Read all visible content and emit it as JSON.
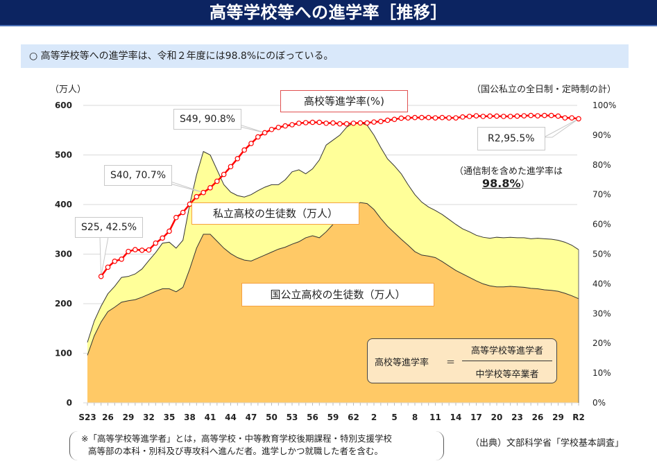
{
  "title": "高等学校等への進学率［推移］",
  "summary": "○  高等学校等への進学率は、令和２年度には98.8%にのぼっている。",
  "units": {
    "left": "（万人）",
    "right_note": "（国公私立の全日制・定時制の計）"
  },
  "series_labels": {
    "rate": "高校等進学率(%)",
    "private": "私立高校の生徒数（万人）",
    "public": "国公立高校の生徒数（万人）"
  },
  "callouts": {
    "s25": "S25, 42.5%",
    "s40": "S40, 70.7%",
    "s49": "S49, 90.8%",
    "r2": "R2,95.5%"
  },
  "note_correspondence": {
    "line1": "（通信制を含めた進学率は",
    "value": "98.8%",
    "close": "）"
  },
  "formula": {
    "lhs": "高校等進学率",
    "equals": "＝",
    "numerator": "高等学校等進学者",
    "denominator": "中学校等卒業者"
  },
  "footnote": {
    "line1": "※「高等学校等進学者」とは，高等学校・中等教育学校後期課程・特別支援学校",
    "line2": "高等部の本科・別科及び専攻科へ進んだ者。進学しかつ就職した者を含む。"
  },
  "source": "（出典）文部科学省「学校基本調査」",
  "colors": {
    "title_bg": "#0c2461",
    "summary_bg": "#d9e8fa",
    "public_fill": "#ffc966",
    "private_fill": "#ffff99",
    "rate_line": "#ff0000",
    "rate_box_border": "#e05050",
    "series_box_border": "#f5a040"
  },
  "chart_data": {
    "type": "area",
    "title": "高等学校等への進学率［推移］",
    "xlabel": "",
    "ylabel": "（万人）",
    "y2label": "%",
    "ylim": [
      0,
      600
    ],
    "y2lim": [
      0,
      100
    ],
    "yticks": [
      0,
      100,
      200,
      300,
      400,
      500,
      600
    ],
    "y2ticks": [
      "0%",
      "10%",
      "20%",
      "30%",
      "40%",
      "50%",
      "60%",
      "70%",
      "80%",
      "90%",
      "100%"
    ],
    "xtick_labels": [
      "S23",
      "26",
      "29",
      "32",
      "35",
      "38",
      "41",
      "44",
      "47",
      "50",
      "53",
      "56",
      "59",
      "62",
      "2",
      "5",
      "8",
      "11",
      "14",
      "17",
      "20",
      "23",
      "26",
      "29",
      "R2"
    ],
    "grid": true,
    "x": [
      "S23",
      "S24",
      "S25",
      "S26",
      "S27",
      "S28",
      "S29",
      "S30",
      "S31",
      "S32",
      "S33",
      "S34",
      "S35",
      "S36",
      "S37",
      "S38",
      "S39",
      "S40",
      "S41",
      "S42",
      "S43",
      "S44",
      "S45",
      "S46",
      "S47",
      "S48",
      "S49",
      "S50",
      "S51",
      "S52",
      "S53",
      "S54",
      "S55",
      "S56",
      "S57",
      "S58",
      "S59",
      "S60",
      "S61",
      "S62",
      "S63",
      "H1",
      "H2",
      "H3",
      "H4",
      "H5",
      "H6",
      "H7",
      "H8",
      "H9",
      "H10",
      "H11",
      "H12",
      "H13",
      "H14",
      "H15",
      "H16",
      "H17",
      "H18",
      "H19",
      "H20",
      "H21",
      "H22",
      "H23",
      "H24",
      "H25",
      "H26",
      "H27",
      "H28",
      "H29",
      "H30",
      "H31",
      "R2"
    ],
    "series": [
      {
        "name": "国公立高校の生徒数（万人）",
        "type": "area",
        "axis": "left",
        "values": [
          96,
          135,
          163,
          184,
          193,
          203,
          206,
          208,
          213,
          219,
          225,
          230,
          230,
          224,
          233,
          270,
          312,
          340,
          340,
          326,
          312,
          301,
          293,
          288,
          286,
          292,
          298,
          304,
          310,
          314,
          320,
          325,
          333,
          337,
          333,
          345,
          360,
          375,
          390,
          397,
          404,
          402,
          390,
          372,
          356,
          343,
          330,
          318,
          305,
          298,
          296,
          293,
          285,
          276,
          267,
          260,
          253,
          246,
          240,
          236,
          234,
          234,
          235,
          234,
          233,
          231,
          230,
          228,
          227,
          225,
          221,
          216,
          210
        ]
      },
      {
        "name": "私立高校の生徒数（万人）",
        "type": "area-stacked-total",
        "axis": "left",
        "values": [
          122,
          165,
          195,
          220,
          235,
          253,
          255,
          260,
          270,
          287,
          303,
          322,
          324,
          312,
          328,
          400,
          460,
          507,
          500,
          470,
          440,
          425,
          418,
          415,
          420,
          428,
          435,
          440,
          440,
          450,
          466,
          470,
          462,
          472,
          490,
          520,
          530,
          540,
          556,
          565,
          565,
          560,
          540,
          515,
          492,
          478,
          462,
          440,
          420,
          405,
          395,
          388,
          380,
          370,
          360,
          351,
          345,
          338,
          334,
          332,
          334,
          333,
          334,
          333,
          333,
          331,
          332,
          331,
          330,
          328,
          324,
          318,
          309
        ]
      },
      {
        "name": "高校等進学率(%)",
        "type": "line",
        "axis": "right",
        "start": "S25",
        "values": [
          42.5,
          45.6,
          47.6,
          48.3,
          50.9,
          51.5,
          51.3,
          51.4,
          53.7,
          55.4,
          57.7,
          62.3,
          64.0,
          66.8,
          69.3,
          70.7,
          72.3,
          74.5,
          76.8,
          79.4,
          82.1,
          85.0,
          87.2,
          89.4,
          90.8,
          91.9,
          92.6,
          93.1,
          93.5,
          94.0,
          94.2,
          94.3,
          94.3,
          94.0,
          94.1,
          93.8,
          93.8,
          94.0,
          94.1,
          94.1,
          94.4,
          94.6,
          95.0,
          95.3,
          95.7,
          95.8,
          95.9,
          95.9,
          95.9,
          95.8,
          95.9,
          95.8,
          95.8,
          96.1,
          96.3,
          96.5,
          96.3,
          96.4,
          96.4,
          96.3,
          96.3,
          96.4,
          96.5,
          96.6,
          96.5,
          96.6,
          96.6,
          96.4,
          95.8,
          95.8,
          95.5
        ]
      }
    ],
    "annotations": [
      "S25, 42.5%",
      "S40, 70.7%",
      "S49, 90.8%",
      "R2,95.5%",
      "（通信制を含めた進学率は 98.8%）"
    ]
  }
}
